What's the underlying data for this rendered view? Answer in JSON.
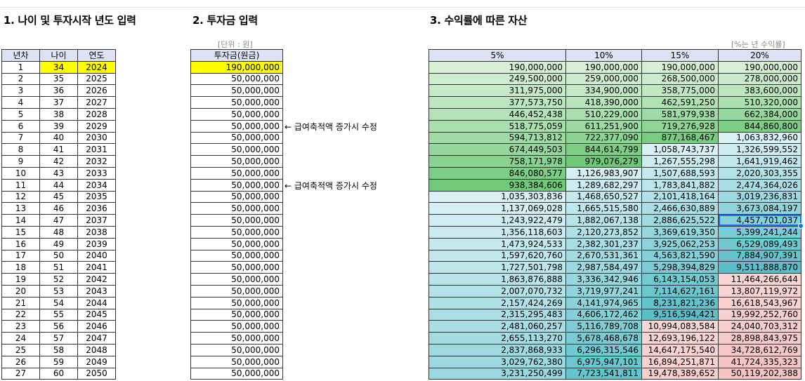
{
  "titles": {
    "section1": "1. 나이 및 투자시작 년도 입력",
    "section2": "2. 투자금 입력",
    "section3": "3. 수익률에 따른 자산"
  },
  "units": {
    "investment": "[단위 : 원]",
    "returns": "[%는 년 수익률]"
  },
  "table1": {
    "headers": [
      "년차",
      "나이",
      "연도"
    ],
    "rows": [
      [
        "1",
        "34",
        "2024"
      ],
      [
        "2",
        "35",
        "2025"
      ],
      [
        "3",
        "36",
        "2026"
      ],
      [
        "4",
        "37",
        "2027"
      ],
      [
        "5",
        "38",
        "2028"
      ],
      [
        "6",
        "39",
        "2029"
      ],
      [
        "7",
        "40",
        "2030"
      ],
      [
        "8",
        "41",
        "2031"
      ],
      [
        "9",
        "42",
        "2032"
      ],
      [
        "10",
        "43",
        "2033"
      ],
      [
        "11",
        "44",
        "2034"
      ],
      [
        "12",
        "45",
        "2035"
      ],
      [
        "13",
        "46",
        "2036"
      ],
      [
        "14",
        "47",
        "2037"
      ],
      [
        "15",
        "48",
        "2038"
      ],
      [
        "16",
        "49",
        "2039"
      ],
      [
        "17",
        "50",
        "2040"
      ],
      [
        "18",
        "51",
        "2041"
      ],
      [
        "19",
        "52",
        "2042"
      ],
      [
        "20",
        "53",
        "2043"
      ],
      [
        "21",
        "54",
        "2044"
      ],
      [
        "22",
        "55",
        "2045"
      ],
      [
        "23",
        "56",
        "2046"
      ],
      [
        "24",
        "57",
        "2047"
      ],
      [
        "25",
        "58",
        "2048"
      ],
      [
        "26",
        "59",
        "2049"
      ],
      [
        "27",
        "60",
        "2050"
      ]
    ]
  },
  "table2": {
    "header": "투자금(원금)",
    "values": [
      "190,000,000",
      "50,000,000",
      "50,000,000",
      "50,000,000",
      "50,000,000",
      "50,000,000",
      "50,000,000",
      "50,000,000",
      "50,000,000",
      "50,000,000",
      "50,000,000",
      "50,000,000",
      "50,000,000",
      "50,000,000",
      "50,000,000",
      "50,000,000",
      "50,000,000",
      "50,000,000",
      "50,000,000",
      "50,000,000",
      "50,000,000",
      "50,000,000",
      "50,000,000",
      "50,000,000",
      "50,000,000",
      "50,000,000",
      "50,000,000"
    ]
  },
  "notes": {
    "row6": "← 급여축적액 증가시 수정",
    "row11": "← 급여축적액 증가시 수정"
  },
  "table3": {
    "headers": [
      "5%",
      "10%",
      "15%",
      "20%"
    ],
    "rows": [
      [
        "190,000,000",
        "190,000,000",
        "190,000,000",
        "190,000,000"
      ],
      [
        "249,500,000",
        "259,000,000",
        "268,500,000",
        "278,000,000"
      ],
      [
        "311,975,000",
        "334,900,000",
        "358,775,000",
        "383,600,000"
      ],
      [
        "377,573,750",
        "418,390,000",
        "462,591,250",
        "510,320,000"
      ],
      [
        "446,452,438",
        "510,229,000",
        "581,979,938",
        "662,384,000"
      ],
      [
        "518,775,059",
        "611,251,900",
        "719,276,928",
        "844,860,800"
      ],
      [
        "594,713,812",
        "722,377,090",
        "877,168,467",
        "1,063,832,960"
      ],
      [
        "674,449,503",
        "844,614,799",
        "1,058,743,737",
        "1,326,599,552"
      ],
      [
        "758,171,978",
        "979,076,279",
        "1,267,555,298",
        "1,641,919,462"
      ],
      [
        "846,080,577",
        "1,126,983,907",
        "1,507,688,593",
        "2,020,303,355"
      ],
      [
        "938,384,606",
        "1,289,682,297",
        "1,783,841,882",
        "2,474,364,026"
      ],
      [
        "1,035,303,836",
        "1,468,650,527",
        "2,101,418,164",
        "3,019,236,831"
      ],
      [
        "1,137,069,028",
        "1,665,515,580",
        "2,466,630,889",
        "3,673,084,197"
      ],
      [
        "1,243,922,479",
        "1,882,067,138",
        "2,886,625,522",
        "4,457,701,037"
      ],
      [
        "1,356,118,603",
        "2,120,273,852",
        "3,369,619,350",
        "5,399,241,244"
      ],
      [
        "1,473,924,533",
        "2,382,301,237",
        "3,925,062,253",
        "6,529,089,493"
      ],
      [
        "1,597,620,760",
        "2,670,531,361",
        "4,563,821,590",
        "7,884,907,391"
      ],
      [
        "1,727,501,798",
        "2,987,584,497",
        "5,298,394,829",
        "9,511,888,870"
      ],
      [
        "1,863,876,888",
        "3,336,342,946",
        "6,143,154,053",
        "11,464,266,644"
      ],
      [
        "2,007,070,732",
        "3,719,977,241",
        "7,114,627,161",
        "13,807,119,972"
      ],
      [
        "2,157,424,269",
        "4,141,974,965",
        "8,231,821,236",
        "16,618,543,967"
      ],
      [
        "2,315,295,483",
        "4,606,172,462",
        "9,516,594,421",
        "19,992,252,760"
      ],
      [
        "2,481,060,257",
        "5,116,789,708",
        "10,994,083,584",
        "24,040,703,312"
      ],
      [
        "2,655,113,270",
        "5,678,468,678",
        "12,693,196,122",
        "28,898,843,975"
      ],
      [
        "2,837,868,933",
        "6,296,315,546",
        "14,647,175,540",
        "34,728,612,769"
      ],
      [
        "3,029,762,380",
        "6,975,947,101",
        "16,894,251,871",
        "41,724,335,323"
      ],
      [
        "3,231,250,499",
        "7,723,541,811",
        "19,478,389,652",
        "50,119,202,388"
      ]
    ]
  },
  "colors": {
    "highlight": "#ffff00",
    "header_fill": "#dde3f5",
    "selection": "#1a73e8"
  }
}
